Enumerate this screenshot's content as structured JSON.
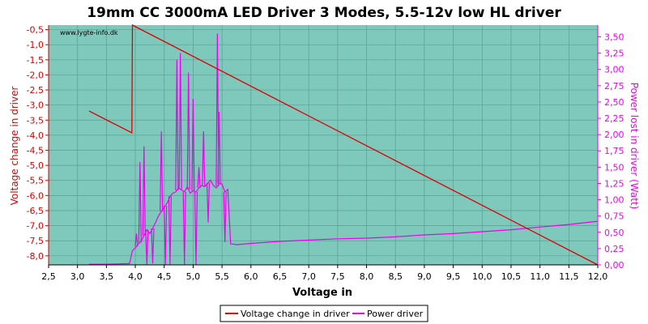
{
  "chart_data": {
    "type": "line",
    "title": "19mm CC 3000mA LED Driver 3 Modes, 5.5-12v low HL driver",
    "watermark": "www.lygte-info.dk",
    "xlabel": "Voltage in",
    "ylabel_left": "Voltage change in driver",
    "ylabel_right": "Power lost in driver (Watt)",
    "xlim": [
      2.5,
      12.0
    ],
    "ylim_left": [
      -8.3,
      -0.35
    ],
    "ylim_right": [
      0.0,
      3.68
    ],
    "x_ticks": [
      "2,5",
      "3,0",
      "3,5",
      "4,0",
      "4,5",
      "5,0",
      "5,5",
      "6,0",
      "6,5",
      "7,0",
      "7,5",
      "8,0",
      "8,5",
      "9,0",
      "9,5",
      "10,0",
      "10,5",
      "11,0",
      "11,5",
      "12,0"
    ],
    "y_left_ticks": [
      "-0,5",
      "-1,0",
      "-1,5",
      "-2,0",
      "-2,5",
      "-3,0",
      "-3,5",
      "-4,0",
      "-4,5",
      "-5,0",
      "-5,5",
      "-6,0",
      "-6,5",
      "-7,0",
      "-7,5",
      "-8,0"
    ],
    "y_right_ticks": [
      "0,00",
      "0,25",
      "0,50",
      "0,75",
      "1,00",
      "1,25",
      "1,50",
      "1,75",
      "2,00",
      "2,25",
      "2,50",
      "2,75",
      "3,00",
      "3,25",
      "3,50"
    ],
    "grid": true,
    "legend_position": "bottom-center",
    "colors": {
      "plot_bg": "#7fc8bc",
      "grid": "#5a9e94",
      "voltage_series": "#dd0000",
      "power_series": "#ee00ee",
      "left_axis": "#dd0000",
      "right_axis": "#ee00ee"
    },
    "series": [
      {
        "name": "Voltage change in driver",
        "axis": "left",
        "x": [
          3.2,
          3.94,
          3.95,
          12.0
        ],
        "y": [
          -3.2,
          -3.92,
          -0.35,
          -8.3
        ]
      },
      {
        "name": "Power driver",
        "axis": "right",
        "x": [
          3.2,
          3.5,
          3.9,
          3.95,
          4.0,
          4.05,
          4.1,
          4.15,
          4.2,
          4.25,
          4.3,
          4.35,
          4.4,
          4.45,
          4.5,
          4.55,
          4.6,
          4.65,
          4.7,
          4.75,
          4.8,
          4.85,
          4.9,
          4.95,
          5.0,
          5.05,
          5.1,
          5.15,
          5.2,
          5.25,
          5.3,
          5.35,
          5.4,
          5.45,
          5.5,
          5.55,
          5.6,
          5.65,
          5.7,
          5.75,
          6.0,
          6.5,
          7.0,
          7.5,
          8.0,
          8.5,
          9.0,
          9.5,
          10.0,
          10.5,
          11.0,
          11.5,
          12.0
        ],
        "y": [
          0.01,
          0.01,
          0.02,
          0.22,
          0.26,
          0.32,
          0.36,
          0.45,
          0.54,
          0.48,
          0.56,
          0.65,
          0.75,
          0.82,
          0.88,
          0.95,
          1.05,
          1.1,
          1.12,
          1.18,
          1.15,
          1.12,
          1.2,
          1.1,
          1.14,
          1.12,
          1.18,
          1.22,
          1.2,
          1.25,
          1.3,
          1.22,
          1.18,
          1.25,
          1.24,
          1.12,
          1.16,
          0.32,
          0.32,
          0.31,
          0.33,
          0.36,
          0.38,
          0.4,
          0.41,
          0.43,
          0.46,
          0.48,
          0.51,
          0.54,
          0.58,
          0.62,
          0.67
        ]
      }
    ],
    "power_spikes": [
      {
        "x": 4.02,
        "peak": 0.48
      },
      {
        "x": 4.08,
        "peak": 1.58
      },
      {
        "x": 4.15,
        "peak": 1.82
      },
      {
        "x": 4.2,
        "low": 0.0
      },
      {
        "x": 4.3,
        "low": 0.02
      },
      {
        "x": 4.45,
        "peak": 2.05
      },
      {
        "x": 4.52,
        "low": 0.0
      },
      {
        "x": 4.6,
        "low": 0.0
      },
      {
        "x": 4.72,
        "peak": 3.15
      },
      {
        "x": 4.78,
        "peak": 3.25
      },
      {
        "x": 4.85,
        "low": 0.0
      },
      {
        "x": 4.92,
        "peak": 2.95
      },
      {
        "x": 5.0,
        "peak": 2.55
      },
      {
        "x": 5.05,
        "low": 0.0
      },
      {
        "x": 5.1,
        "peak": 1.5
      },
      {
        "x": 5.18,
        "peak": 2.05
      },
      {
        "x": 5.26,
        "low": 0.65
      },
      {
        "x": 5.42,
        "peak": 3.55
      },
      {
        "x": 5.45,
        "peak": 2.35
      },
      {
        "x": 5.55,
        "low": 0.35
      }
    ],
    "legend": [
      "Voltage change in driver",
      "Power driver"
    ]
  }
}
